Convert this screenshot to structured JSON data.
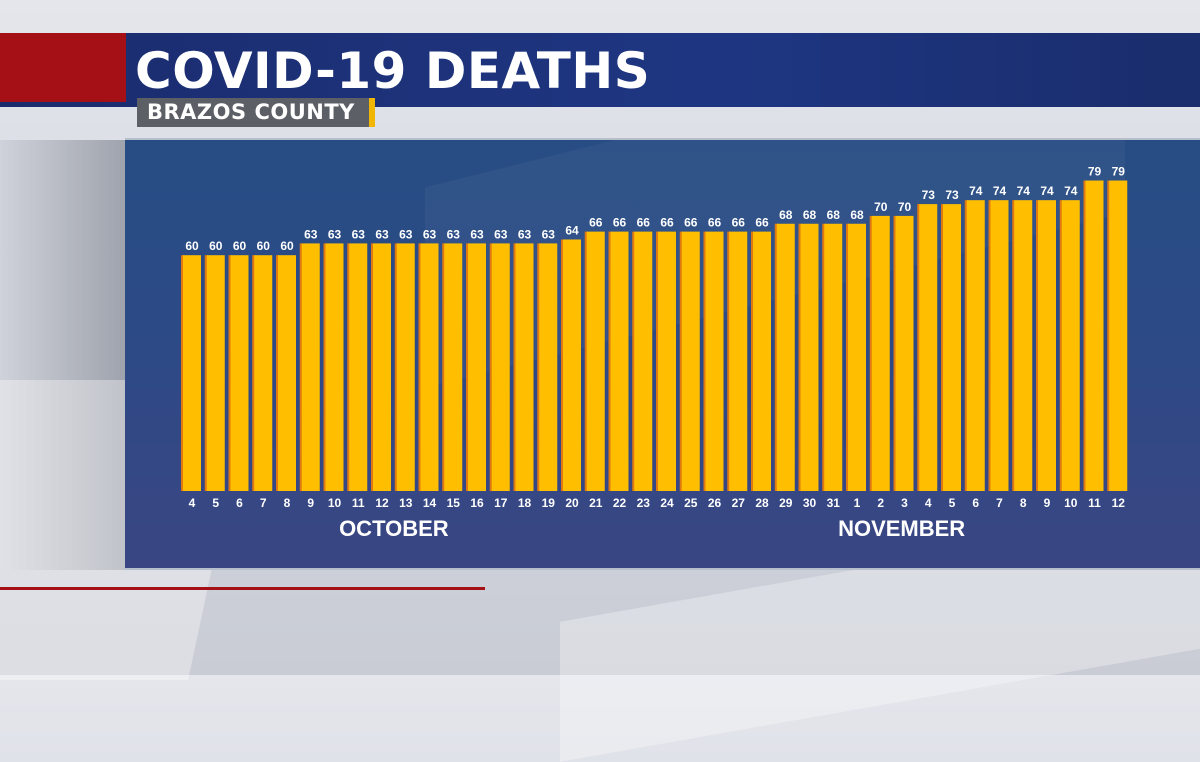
{
  "header": {
    "title": "COVID-19 DEATHS",
    "subtitle": "BRAZOS COUNTY"
  },
  "colors": {
    "bar": "#ffbf00",
    "bar_shadow": "#e07a10",
    "title_bar": "#1e3682",
    "accent_red": "#a50f16",
    "panel": "#2c4a86",
    "text": "#ffffff"
  },
  "chart_data": {
    "type": "bar",
    "title": "COVID-19 DEATHS",
    "subtitle": "BRAZOS COUNTY",
    "categories": [
      "4",
      "5",
      "6",
      "7",
      "8",
      "9",
      "10",
      "11",
      "12",
      "13",
      "14",
      "15",
      "16",
      "17",
      "18",
      "19",
      "20",
      "21",
      "22",
      "23",
      "24",
      "25",
      "26",
      "27",
      "28",
      "29",
      "30",
      "31",
      "1",
      "2",
      "3",
      "4",
      "5",
      "6",
      "7",
      "8",
      "9",
      "10",
      "11",
      "12"
    ],
    "values": [
      60,
      60,
      60,
      60,
      60,
      63,
      63,
      63,
      63,
      63,
      63,
      63,
      63,
      63,
      63,
      63,
      64,
      66,
      66,
      66,
      66,
      66,
      66,
      66,
      66,
      68,
      68,
      68,
      68,
      70,
      70,
      73,
      73,
      74,
      74,
      74,
      74,
      74,
      79,
      79
    ],
    "data_labels": true,
    "month_labels": [
      {
        "label": "OCTOBER",
        "from_index": 0,
        "to_index": 27
      },
      {
        "label": "NOVEMBER",
        "from_index": 28,
        "to_index": 39
      }
    ],
    "xlabel": "",
    "ylabel": "",
    "grid": false,
    "legend": "none"
  }
}
